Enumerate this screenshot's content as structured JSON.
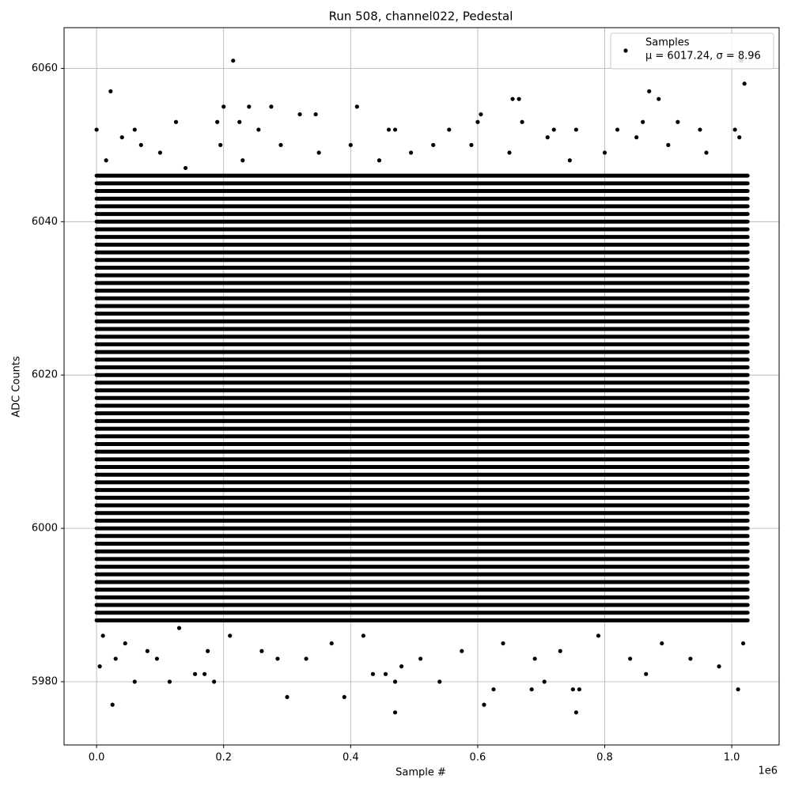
{
  "chart_data": {
    "type": "scatter",
    "title": "Run 508, channel022, Pedestal",
    "x_label": "Sample #",
    "y_label": "ADC Counts",
    "x_offset_label": "1e6",
    "xlim": [
      -51200,
      1074600
    ],
    "ylim": [
      5971.75,
      6065.3
    ],
    "xticks": [
      {
        "value": 0,
        "label": "0.0"
      },
      {
        "value": 200000,
        "label": "0.2"
      },
      {
        "value": 400000,
        "label": "0.4"
      },
      {
        "value": 600000,
        "label": "0.6"
      },
      {
        "value": 800000,
        "label": "0.8"
      },
      {
        "value": 1000000,
        "label": "1.0"
      }
    ],
    "yticks": [
      5980,
      6000,
      6020,
      6040,
      6060
    ],
    "grid": true,
    "legend_position": "upper right",
    "stats": "μ = 6017.24, σ = 8.96",
    "series": [
      {
        "name": "Samples",
        "color": "#000000",
        "x": [
          5000,
          25000,
          60000,
          115000,
          155000,
          170000,
          185000,
          300000,
          390000,
          470000,
          470000,
          540000,
          610000,
          625000,
          685000,
          705000,
          755000,
          750000,
          760000,
          865000,
          1010000,
          435000,
          455000,
          0,
          22000,
          215000,
          200000,
          240000,
          275000,
          410000,
          320000,
          345000,
          605000,
          655000,
          665000,
          870000,
          885000,
          1020000,
          1015000,
          125000,
          190000,
          225000,
          600000,
          670000,
          860000,
          915000,
          60000,
          255000,
          460000,
          470000,
          555000,
          720000,
          755000,
          820000,
          950000,
          1005000,
          10000,
          30000,
          45000,
          80000,
          95000,
          130000,
          175000,
          210000,
          260000,
          285000,
          330000,
          370000,
          420000,
          480000,
          510000,
          575000,
          640000,
          690000,
          730000,
          790000,
          840000,
          890000,
          935000,
          980000,
          1018000,
          15000,
          40000,
          70000,
          100000,
          140000,
          195000,
          230000,
          290000,
          350000,
          400000,
          445000,
          495000,
          530000,
          590000,
          650000,
          710000,
          745000,
          800000,
          850000,
          900000,
          960000,
          1012000
        ],
        "values": [
          5982,
          5977,
          5980,
          5980,
          5981,
          5981,
          5980,
          5978,
          5978,
          5976,
          5980,
          5980,
          5977,
          5979,
          5979,
          5980,
          5976,
          5979,
          5979,
          5981,
          5979,
          5981,
          5981,
          6052,
          6057,
          6061,
          6055,
          6055,
          6055,
          6055,
          6054,
          6054,
          6054,
          6056,
          6056,
          6057,
          6056,
          6058,
          6061,
          6053,
          6053,
          6053,
          6053,
          6053,
          6053,
          6053,
          6052,
          6052,
          6052,
          6052,
          6052,
          6052,
          6052,
          6052,
          6052,
          6052,
          5986,
          5983,
          5985,
          5984,
          5983,
          5987,
          5984,
          5986,
          5984,
          5983,
          5983,
          5985,
          5986,
          5982,
          5983,
          5984,
          5985,
          5983,
          5984,
          5986,
          5983,
          5985,
          5983,
          5982,
          5985,
          6048,
          6051,
          6050,
          6049,
          6047,
          6050,
          6048,
          6050,
          6049,
          6050,
          6048,
          6049,
          6050,
          6050,
          6049,
          6051,
          6048,
          6049,
          6051,
          6050,
          6049,
          6051
        ]
      }
    ],
    "dense_rows": {
      "x_range": [
        0,
        1025000
      ],
      "levels": [
        5988,
        5989,
        5990,
        5991,
        5992,
        5993,
        5994,
        5995,
        5996,
        5997,
        5998,
        5999,
        6000,
        6001,
        6002,
        6003,
        6004,
        6005,
        6006,
        6007,
        6008,
        6009,
        6010,
        6011,
        6012,
        6013,
        6014,
        6015,
        6016,
        6017,
        6018,
        6019,
        6020,
        6021,
        6022,
        6023,
        6024,
        6025,
        6026,
        6027,
        6028,
        6029,
        6030,
        6031,
        6032,
        6033,
        6034,
        6035,
        6036,
        6037,
        6038,
        6039,
        6040,
        6041,
        6042,
        6043,
        6044,
        6045,
        6046
      ]
    }
  }
}
